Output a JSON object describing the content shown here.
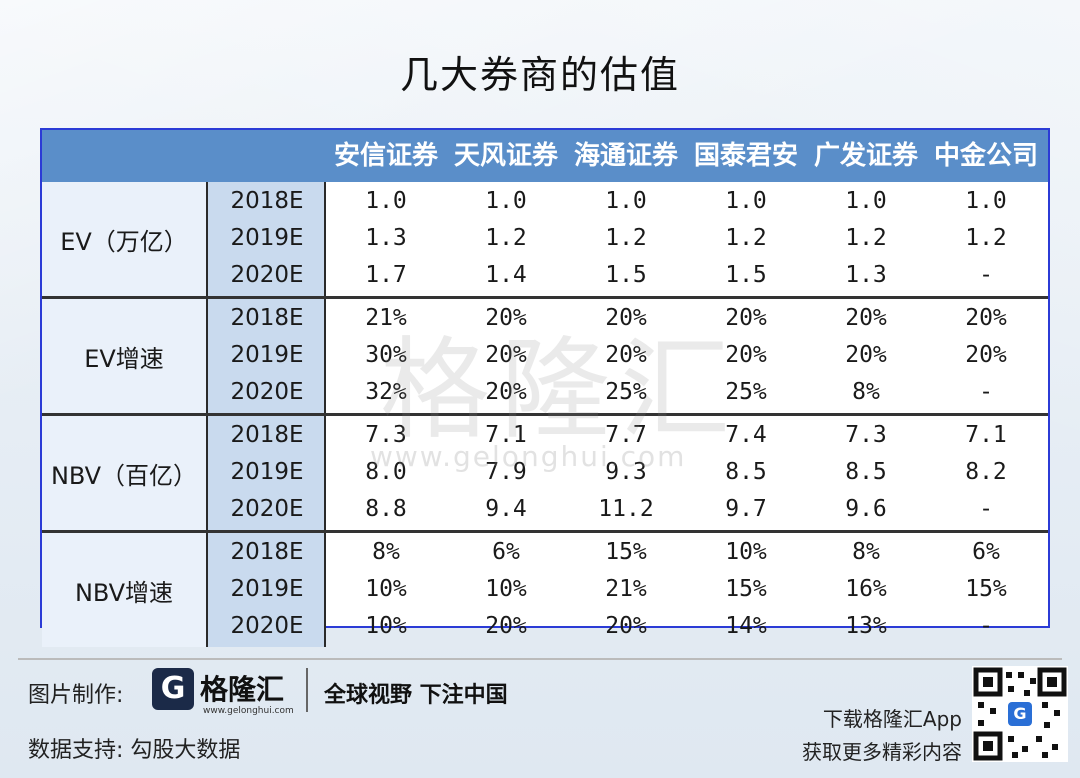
{
  "title": "几大券商的估值",
  "columns": [
    "安信证券",
    "天风证券",
    "海通证券",
    "国泰君安",
    "广发证券",
    "中金公司"
  ],
  "groups": [
    {
      "label": "EV（万亿）",
      "years": [
        "2018E",
        "2019E",
        "2020E"
      ],
      "rows": [
        [
          "1.0",
          "1.0",
          "1.0",
          "1.0",
          "1.0",
          "1.0"
        ],
        [
          "1.3",
          "1.2",
          "1.2",
          "1.2",
          "1.2",
          "1.2"
        ],
        [
          "1.7",
          "1.4",
          "1.5",
          "1.5",
          "1.3",
          "-"
        ]
      ]
    },
    {
      "label": "EV增速",
      "years": [
        "2018E",
        "2019E",
        "2020E"
      ],
      "rows": [
        [
          "21%",
          "20%",
          "20%",
          "20%",
          "20%",
          "20%"
        ],
        [
          "30%",
          "20%",
          "20%",
          "20%",
          "20%",
          "20%"
        ],
        [
          "32%",
          "20%",
          "25%",
          "25%",
          "8%",
          "-"
        ]
      ]
    },
    {
      "label": "NBV（百亿）",
      "years": [
        "2018E",
        "2019E",
        "2020E"
      ],
      "rows": [
        [
          "7.3",
          "7.1",
          "7.7",
          "7.4",
          "7.3",
          "7.1"
        ],
        [
          "8.0",
          "7.9",
          "9.3",
          "8.5",
          "8.5",
          "8.2"
        ],
        [
          "8.8",
          "9.4",
          "11.2",
          "9.7",
          "9.6",
          "-"
        ]
      ]
    },
    {
      "label": "NBV增速",
      "years": [
        "2018E",
        "2019E",
        "2020E"
      ],
      "rows": [
        [
          "8%",
          "6%",
          "15%",
          "10%",
          "8%",
          "6%"
        ],
        [
          "10%",
          "10%",
          "21%",
          "15%",
          "16%",
          "15%"
        ],
        [
          "10%",
          "20%",
          "20%",
          "14%",
          "13%",
          "-"
        ]
      ]
    }
  ],
  "watermark": "格隆汇",
  "watermark_url": "www.gelonghui.com",
  "footer": {
    "made_by_label": "图片制作:",
    "logo_glyph": "G",
    "logo_text": "格隆汇",
    "logo_url": "www.gelonghui.com",
    "slogan": "全球视野 下注中国",
    "data_support": "数据支持:  勾股大数据",
    "app_line1": "下载格隆汇App",
    "app_line2": "获取更多精彩内容",
    "qr_glyph": "G"
  }
}
